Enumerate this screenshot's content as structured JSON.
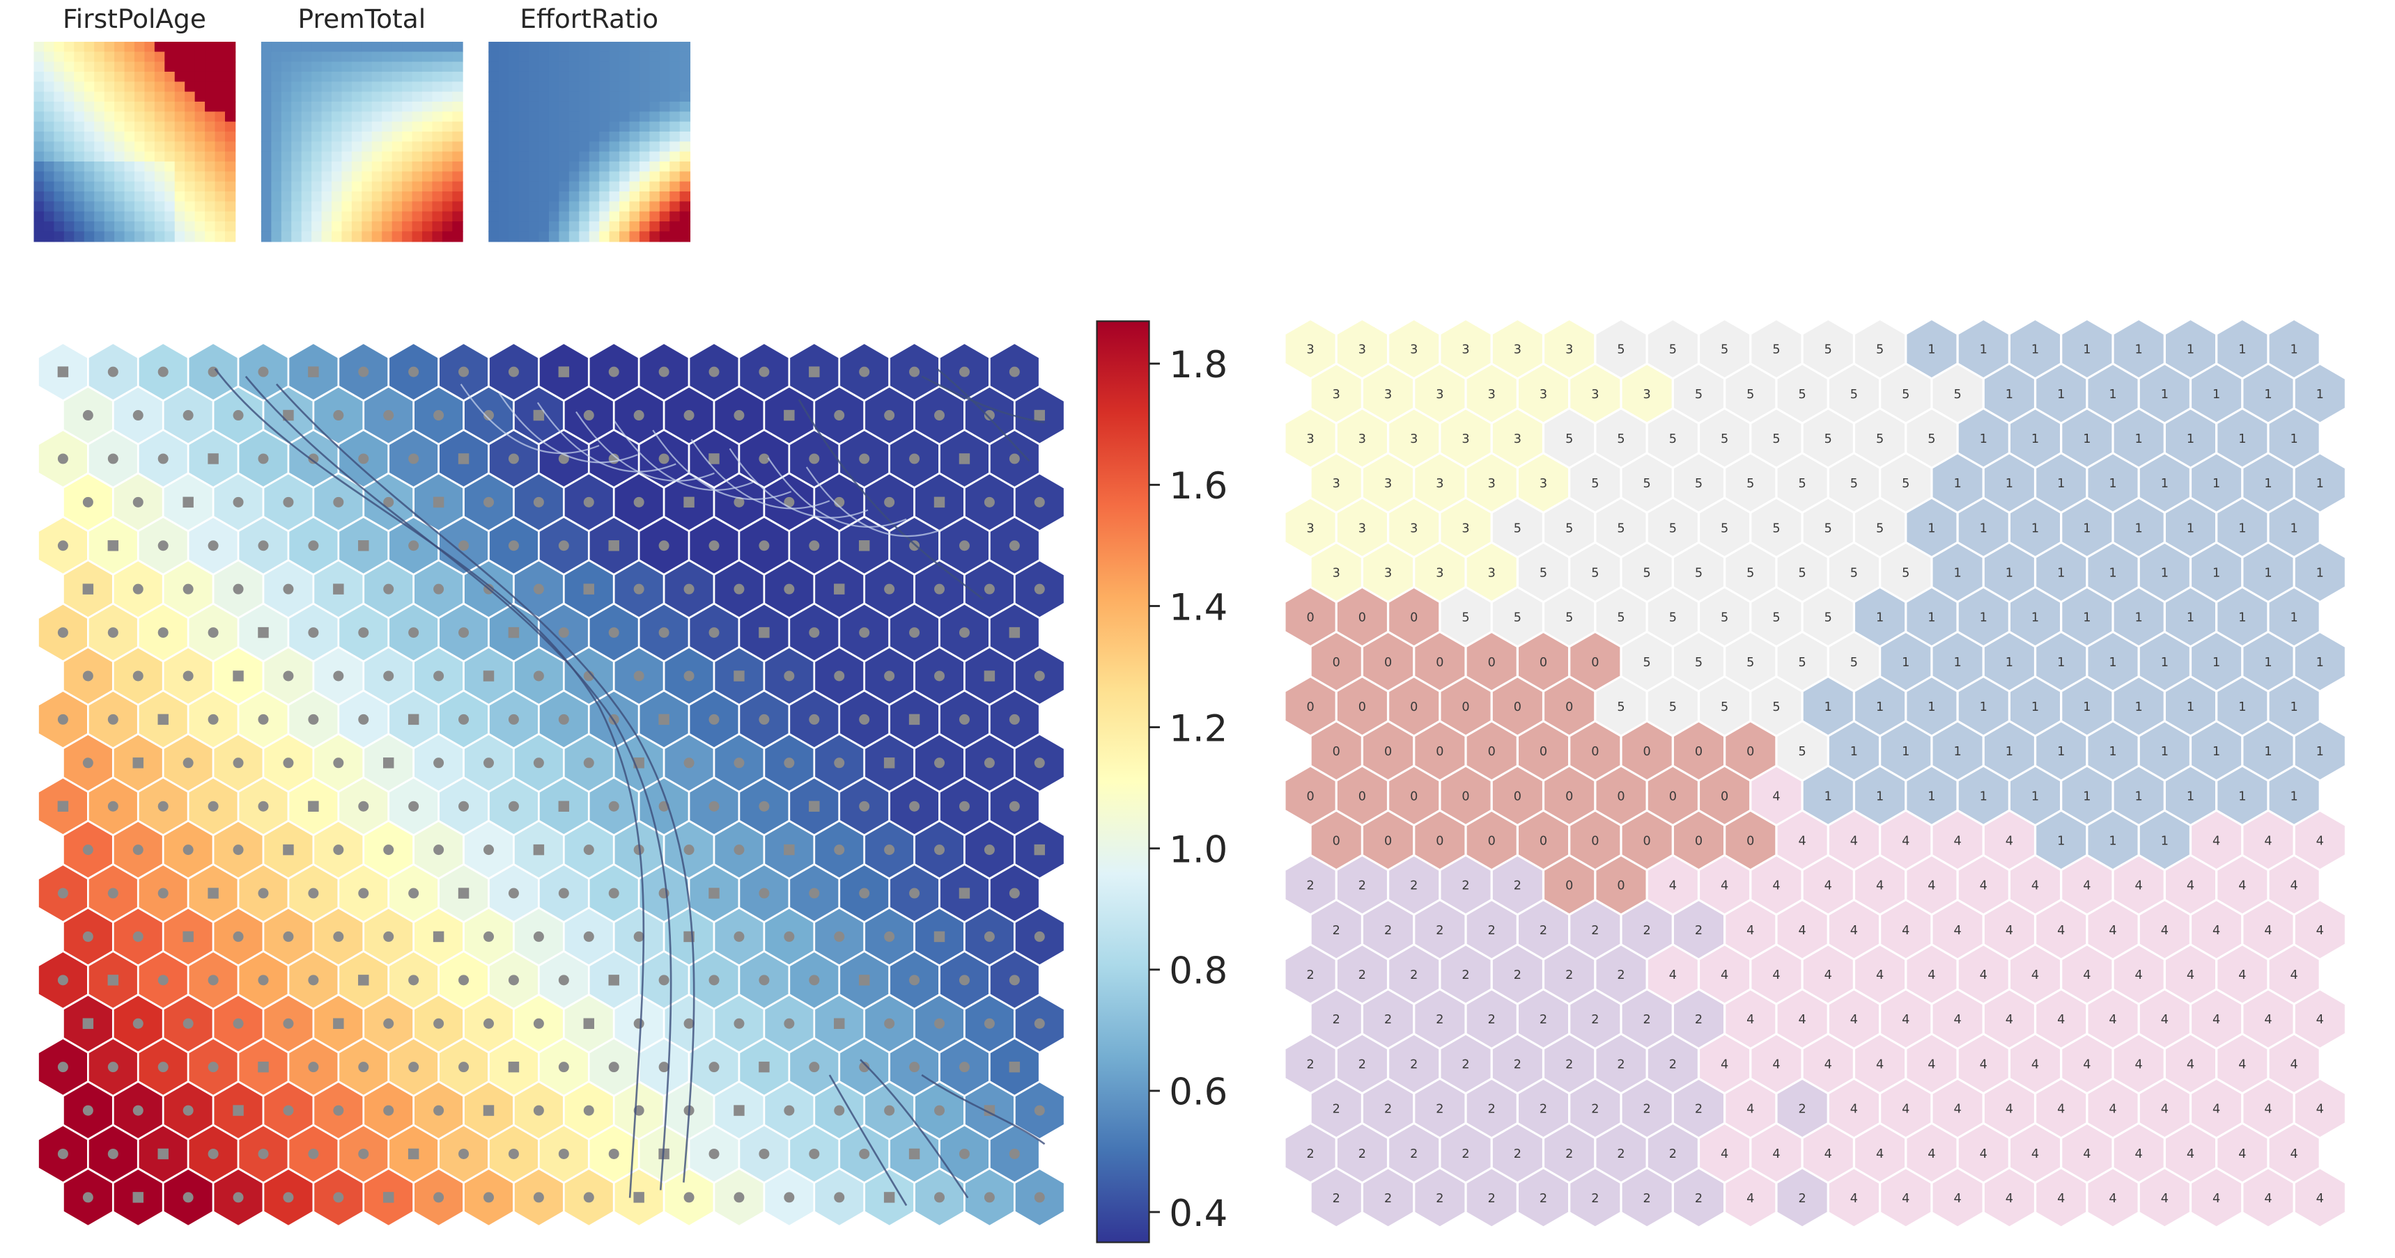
{
  "chart_data": [
    {
      "type": "heatmap",
      "panel": "component-planes",
      "grid": {
        "rows": 20,
        "cols": 20
      },
      "subplots": [
        {
          "title": "FirstPolAge",
          "cmap": "RdYlBu_r",
          "description": "high (red) at top-right corner, yellow band across upper-left diagonal, low (blue) at bottom-left and lower-middle"
        },
        {
          "title": "PremTotal",
          "cmap": "RdYlBu_r",
          "description": "low (blue) at top-left, high (red) at bottom-right"
        },
        {
          "title": "EffortRatio",
          "cmap": "RdYlBu_r",
          "description": "mostly low (blue), high (red) concentrated at bottom-right"
        }
      ]
    },
    {
      "type": "heatmap",
      "panel": "u-matrix",
      "grid": {
        "rows": 20,
        "cols": 20,
        "cell_shape": "hexagon"
      },
      "cmap": "RdYlBu_r",
      "colorbar": {
        "min": 0.35,
        "max": 1.87,
        "ticks": [
          1.8,
          1.6,
          1.4,
          1.2,
          1.0,
          0.8,
          0.6,
          0.4
        ]
      },
      "value_pattern": "high (up to ~1.85) at bottom-left, ~1.0 along a diagonal band, low (~0.35) in upper-center and right",
      "markers": "grey dots and squares at unit centres",
      "overlay": "dark flow lines descending through the center"
    },
    {
      "type": "heatmap",
      "panel": "cluster-map",
      "grid": {
        "rows": 20,
        "cols": 20,
        "cell_shape": "hexagon"
      },
      "clusters": [
        {
          "label": "0",
          "color": "#e0aaa4",
          "region": "middle-left"
        },
        {
          "label": "1",
          "color": "#b9cbe0",
          "region": "upper-right"
        },
        {
          "label": "2",
          "color": "#dcd0e6",
          "region": "bottom-left"
        },
        {
          "label": "3",
          "color": "#fbfbd3",
          "region": "top-left"
        },
        {
          "label": "4",
          "color": "#f4dcea",
          "region": "bottom-right"
        },
        {
          "label": "5",
          "color": "#f0f0f0",
          "region": "upper-center"
        }
      ],
      "cell_labels": [
        "33333355555511111111",
        "33333335555551111111",
        "33333555555551111111",
        "33333555555511111111",
        "33335555555511111111",
        "33335555555511111111",
        "00055555555111111111",
        "00000055555111111111",
        "00000055551111111111",
        "00000000051111111111",
        "00000000041111111111",
        "00000000044444111444",
        "22222004444444444444",
        "22222222444444444444",
        "22222224444444444444",
        "22222222444444444444",
        "22222222444444444444",
        "22222222424444444444",
        "22222222444444444444",
        "22222222424444444444"
      ]
    }
  ]
}
